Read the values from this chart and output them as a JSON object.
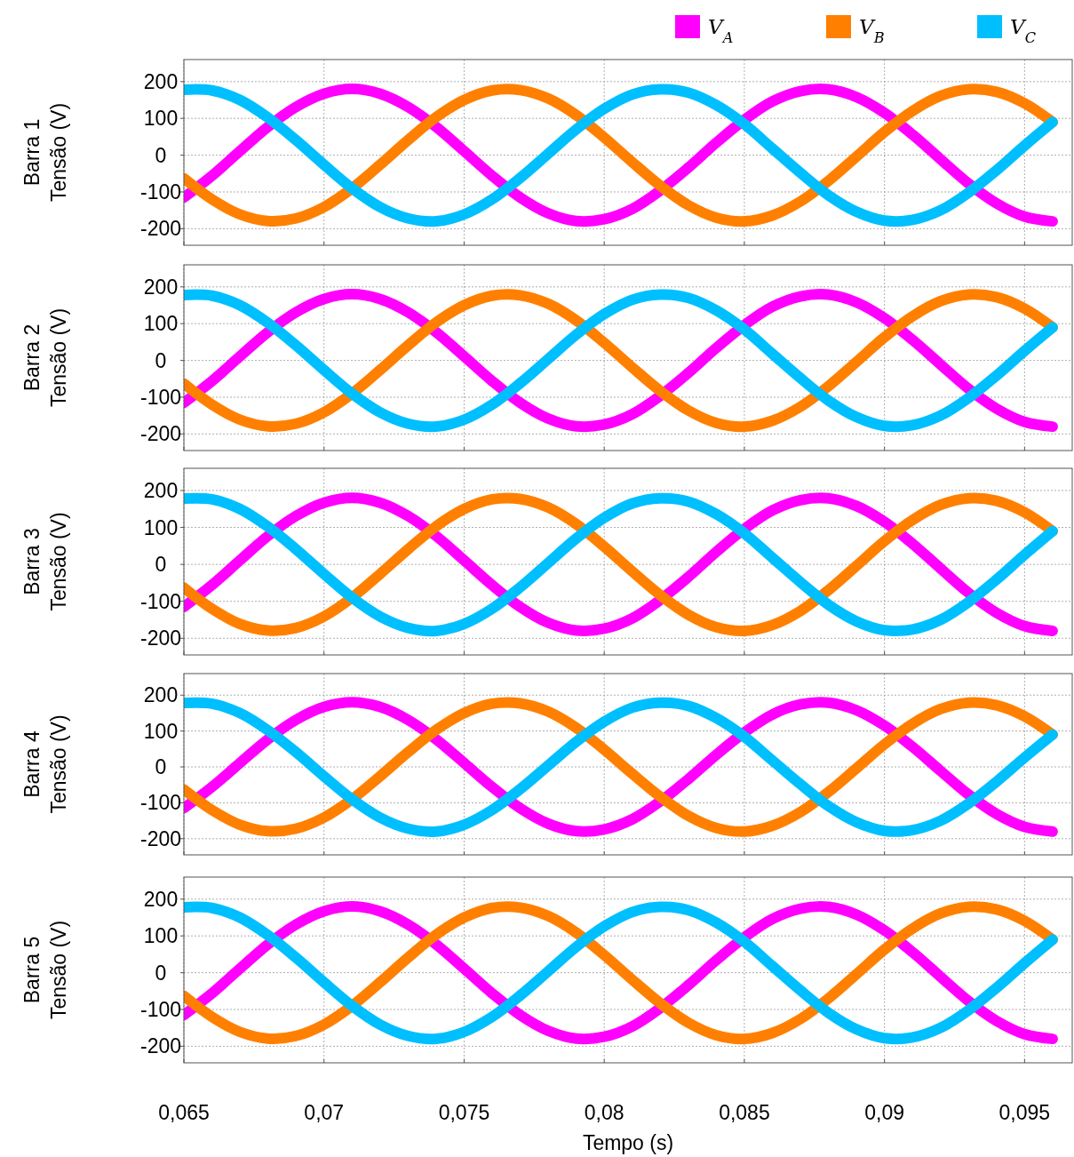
{
  "chart_data": [
    {
      "type": "line",
      "ylabel": "Barra 1\nTensão (V)",
      "x": [
        0.065,
        0.066,
        0.067,
        0.068,
        0.069,
        0.07,
        0.071,
        0.072,
        0.073,
        0.074,
        0.075,
        0.076,
        0.077,
        0.078,
        0.079,
        0.08,
        0.081,
        0.082,
        0.083,
        0.084,
        0.085,
        0.086,
        0.087,
        0.088,
        0.089,
        0.09,
        0.091,
        0.092,
        0.093,
        0.094,
        0.095,
        0.096
      ],
      "xlim": [
        0.065,
        0.0967
      ],
      "xticks": [
        {
          "value": 0.065,
          "label": null
        },
        {
          "value": 0.07,
          "label": null
        },
        {
          "value": 0.075,
          "label": null
        },
        {
          "value": 0.08,
          "label": null
        },
        {
          "value": 0.085,
          "label": null
        },
        {
          "value": 0.09,
          "label": null
        },
        {
          "value": 0.095,
          "label": null
        }
      ],
      "ylim": [
        -245,
        260
      ],
      "yticks": [
        -200,
        -100,
        0,
        100,
        200
      ],
      "grid": true,
      "line_style": "solid",
      "tick_labels": "y",
      "legend": "top right",
      "series": [
        {
          "name": "V$_{A}$",
          "color": "#ff00ff",
          "values": [
            -115,
            -56,
            11,
            77,
            131,
            167,
            180,
            167,
            131,
            77,
            11,
            -56,
            -115,
            -158,
            -179,
            -174,
            -146,
            -96,
            -34,
            34,
            96,
            146,
            174,
            179,
            158,
            115,
            56,
            -11,
            -77,
            -131,
            -167,
            -180
          ]
        },
        {
          "name": "V$_{B}$",
          "color": "#ff8000",
          "values": [
            -63,
            -120,
            -161,
            -179,
            -172,
            -141,
            -90,
            -26,
            41,
            103,
            150,
            176,
            177,
            154,
            109,
            48,
            -19,
            -83,
            -136,
            -170,
            -180,
            -164,
            -126,
            -70,
            -4,
            63,
            120,
            161,
            179,
            172,
            141,
            90
          ]
        },
        {
          "name": "V$_{C}$",
          "color": "#00bfff",
          "values": [
            178,
            176,
            150,
            102,
            41,
            -26,
            -90,
            -141,
            -172,
            -180,
            -161,
            -120,
            -62,
            4,
            70,
            126,
            165,
            179,
            170,
            136,
            84,
            18,
            -48,
            -109,
            -154,
            -178,
            -176,
            -150,
            -102,
            -41,
            26,
            90
          ]
        }
      ]
    },
    {
      "type": "line",
      "ylabel": "Barra 2\nTensão (V)",
      "x": [
        0.065,
        0.066,
        0.067,
        0.068,
        0.069,
        0.07,
        0.071,
        0.072,
        0.073,
        0.074,
        0.075,
        0.076,
        0.077,
        0.078,
        0.079,
        0.08,
        0.081,
        0.082,
        0.083,
        0.084,
        0.085,
        0.086,
        0.087,
        0.088,
        0.089,
        0.09,
        0.091,
        0.092,
        0.093,
        0.094,
        0.095,
        0.096
      ],
      "xlim": [
        0.065,
        0.0967
      ],
      "xticks": [
        {
          "value": 0.065,
          "label": null
        },
        {
          "value": 0.07,
          "label": null
        },
        {
          "value": 0.075,
          "label": null
        },
        {
          "value": 0.08,
          "label": null
        },
        {
          "value": 0.085,
          "label": null
        },
        {
          "value": 0.09,
          "label": null
        },
        {
          "value": 0.095,
          "label": null
        }
      ],
      "ylim": [
        -245,
        260
      ],
      "yticks": [
        -200,
        -100,
        0,
        100,
        200
      ],
      "grid": true,
      "line_style": "solid",
      "tick_labels": "y",
      "series": [
        {
          "color": "#ff00ff",
          "values": [
            -115,
            -56,
            11,
            77,
            131,
            167,
            180,
            167,
            131,
            77,
            11,
            -56,
            -115,
            -158,
            -179,
            -174,
            -146,
            -96,
            -34,
            34,
            96,
            146,
            174,
            179,
            158,
            115,
            56,
            -11,
            -77,
            -131,
            -167,
            -180
          ]
        },
        {
          "color": "#ff8000",
          "values": [
            -63,
            -120,
            -161,
            -179,
            -172,
            -141,
            -90,
            -26,
            41,
            103,
            150,
            176,
            177,
            154,
            109,
            48,
            -19,
            -83,
            -136,
            -170,
            -180,
            -164,
            -126,
            -70,
            -4,
            63,
            120,
            161,
            179,
            172,
            141,
            90
          ]
        },
        {
          "color": "#00bfff",
          "values": [
            178,
            176,
            150,
            102,
            41,
            -26,
            -90,
            -141,
            -172,
            -180,
            -161,
            -120,
            -62,
            4,
            70,
            126,
            165,
            179,
            170,
            136,
            84,
            18,
            -48,
            -109,
            -154,
            -178,
            -176,
            -150,
            -102,
            -41,
            26,
            90
          ]
        }
      ]
    },
    {
      "type": "line",
      "ylabel": "Barra 3\nTensão (V)",
      "x": [
        0.065,
        0.066,
        0.067,
        0.068,
        0.069,
        0.07,
        0.071,
        0.072,
        0.073,
        0.074,
        0.075,
        0.076,
        0.077,
        0.078,
        0.079,
        0.08,
        0.081,
        0.082,
        0.083,
        0.084,
        0.085,
        0.086,
        0.087,
        0.088,
        0.089,
        0.09,
        0.091,
        0.092,
        0.093,
        0.094,
        0.095,
        0.096
      ],
      "xlim": [
        0.065,
        0.0967
      ],
      "xticks": [
        {
          "value": 0.065,
          "label": null
        },
        {
          "value": 0.07,
          "label": null
        },
        {
          "value": 0.075,
          "label": null
        },
        {
          "value": 0.08,
          "label": null
        },
        {
          "value": 0.085,
          "label": null
        },
        {
          "value": 0.09,
          "label": null
        },
        {
          "value": 0.095,
          "label": null
        }
      ],
      "ylim": [
        -245,
        260
      ],
      "yticks": [
        -200,
        -100,
        0,
        100,
        200
      ],
      "grid": true,
      "line_style": "solid",
      "tick_labels": "y",
      "series": [
        {
          "color": "#ff00ff",
          "values": [
            -115,
            -56,
            11,
            77,
            131,
            167,
            180,
            167,
            131,
            77,
            11,
            -56,
            -115,
            -158,
            -179,
            -174,
            -146,
            -96,
            -34,
            34,
            96,
            146,
            174,
            179,
            158,
            115,
            56,
            -11,
            -77,
            -131,
            -167,
            -180
          ]
        },
        {
          "color": "#ff8000",
          "values": [
            -63,
            -120,
            -161,
            -179,
            -172,
            -141,
            -90,
            -26,
            41,
            103,
            150,
            176,
            177,
            154,
            109,
            48,
            -19,
            -83,
            -136,
            -170,
            -180,
            -164,
            -126,
            -70,
            -4,
            63,
            120,
            161,
            179,
            172,
            141,
            90
          ]
        },
        {
          "color": "#00bfff",
          "values": [
            178,
            176,
            150,
            102,
            41,
            -26,
            -90,
            -141,
            -172,
            -180,
            -161,
            -120,
            -62,
            4,
            70,
            126,
            165,
            179,
            170,
            136,
            84,
            18,
            -48,
            -109,
            -154,
            -178,
            -176,
            -150,
            -102,
            -41,
            26,
            90
          ]
        }
      ]
    },
    {
      "type": "line",
      "ylabel": "Barra 4\nTensão (V)",
      "x": [
        0.065,
        0.066,
        0.067,
        0.068,
        0.069,
        0.07,
        0.071,
        0.072,
        0.073,
        0.074,
        0.075,
        0.076,
        0.077,
        0.078,
        0.079,
        0.08,
        0.081,
        0.082,
        0.083,
        0.084,
        0.085,
        0.086,
        0.087,
        0.088,
        0.089,
        0.09,
        0.091,
        0.092,
        0.093,
        0.094,
        0.095,
        0.096
      ],
      "xlim": [
        0.065,
        0.0967
      ],
      "xticks": [
        {
          "value": 0.065,
          "label": null
        },
        {
          "value": 0.07,
          "label": null
        },
        {
          "value": 0.075,
          "label": null
        },
        {
          "value": 0.08,
          "label": null
        },
        {
          "value": 0.085,
          "label": null
        },
        {
          "value": 0.09,
          "label": null
        },
        {
          "value": 0.095,
          "label": null
        }
      ],
      "ylim": [
        -245,
        260
      ],
      "yticks": [
        -200,
        -100,
        0,
        100,
        200
      ],
      "grid": true,
      "line_style": "solid",
      "tick_labels": "y",
      "series": [
        {
          "color": "#ff00ff",
          "values": [
            -115,
            -56,
            11,
            77,
            131,
            167,
            180,
            167,
            131,
            77,
            11,
            -56,
            -115,
            -158,
            -179,
            -174,
            -146,
            -96,
            -34,
            34,
            96,
            146,
            174,
            179,
            158,
            115,
            56,
            -11,
            -77,
            -131,
            -167,
            -180
          ]
        },
        {
          "color": "#ff8000",
          "values": [
            -63,
            -120,
            -161,
            -179,
            -172,
            -141,
            -90,
            -26,
            41,
            103,
            150,
            176,
            177,
            154,
            109,
            48,
            -19,
            -83,
            -136,
            -170,
            -180,
            -164,
            -126,
            -70,
            -4,
            63,
            120,
            161,
            179,
            172,
            141,
            90
          ]
        },
        {
          "color": "#00bfff",
          "values": [
            178,
            176,
            150,
            102,
            41,
            -26,
            -90,
            -141,
            -172,
            -180,
            -161,
            -120,
            -62,
            4,
            70,
            126,
            165,
            179,
            170,
            136,
            84,
            18,
            -48,
            -109,
            -154,
            -178,
            -176,
            -150,
            -102,
            -41,
            26,
            90
          ]
        }
      ]
    },
    {
      "type": "line",
      "ylabel": "Barra 5\nTensão (V)",
      "xlabel": "Tempo (s)",
      "x": [
        0.065,
        0.066,
        0.067,
        0.068,
        0.069,
        0.07,
        0.071,
        0.072,
        0.073,
        0.074,
        0.075,
        0.076,
        0.077,
        0.078,
        0.079,
        0.08,
        0.081,
        0.082,
        0.083,
        0.084,
        0.085,
        0.086,
        0.087,
        0.088,
        0.089,
        0.09,
        0.091,
        0.092,
        0.093,
        0.094,
        0.095,
        0.096
      ],
      "xlim": [
        0.065,
        0.0967
      ],
      "xticks": [
        {
          "value": 0.065,
          "label": "0,065"
        },
        {
          "value": 0.07,
          "label": "0,07"
        },
        {
          "value": 0.075,
          "label": "0,075"
        },
        {
          "value": 0.08,
          "label": "0,08"
        },
        {
          "value": 0.085,
          "label": "0,085"
        },
        {
          "value": 0.09,
          "label": "0,09"
        },
        {
          "value": 0.095,
          "label": "0,095"
        }
      ],
      "ylim": [
        -245,
        260
      ],
      "yticks": [
        -200,
        -100,
        0,
        100,
        200
      ],
      "grid": true,
      "line_style": "solid",
      "series": [
        {
          "color": "#ff00ff",
          "values": [
            -115,
            -56,
            11,
            77,
            131,
            167,
            180,
            167,
            131,
            77,
            11,
            -56,
            -115,
            -158,
            -179,
            -174,
            -146,
            -96,
            -34,
            34,
            96,
            146,
            174,
            179,
            158,
            115,
            56,
            -11,
            -77,
            -131,
            -167,
            -180
          ]
        },
        {
          "color": "#ff8000",
          "values": [
            -63,
            -120,
            -161,
            -179,
            -172,
            -141,
            -90,
            -26,
            41,
            103,
            150,
            176,
            177,
            154,
            109,
            48,
            -19,
            -83,
            -136,
            -170,
            -180,
            -164,
            -126,
            -70,
            -4,
            63,
            120,
            161,
            179,
            172,
            141,
            90
          ]
        },
        {
          "color": "#00bfff",
          "values": [
            178,
            176,
            150,
            102,
            41,
            -26,
            -90,
            -141,
            -172,
            -180,
            -161,
            -120,
            -62,
            4,
            70,
            126,
            165,
            179,
            170,
            136,
            84,
            18,
            -48,
            -109,
            -154,
            -178,
            -176,
            -150,
            -102,
            -41,
            26,
            90
          ]
        }
      ]
    }
  ]
}
